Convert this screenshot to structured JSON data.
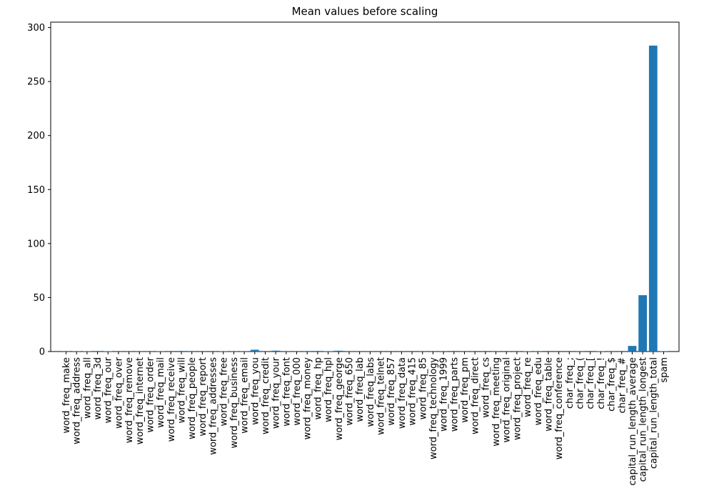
{
  "chart_data": {
    "type": "bar",
    "title": "Mean values before scaling",
    "xlabel": "",
    "ylabel": "",
    "ylim": [
      0,
      305
    ],
    "yticks": [
      0,
      50,
      100,
      150,
      200,
      250,
      300
    ],
    "grid": false,
    "legend": "none",
    "bar_color": "#1f77b4",
    "categories": [
      "word_freq_make",
      "word_freq_address",
      "word_freq_all",
      "word_freq_3d",
      "word_freq_our",
      "word_freq_over",
      "word_freq_remove",
      "word_freq_internet",
      "word_freq_order",
      "word_freq_mail",
      "word_freq_receive",
      "word_freq_will",
      "word_freq_people",
      "word_freq_report",
      "word_freq_addresses",
      "word_freq_free",
      "word_freq_business",
      "word_freq_email",
      "word_freq_you",
      "word_freq_credit",
      "word_freq_your",
      "word_freq_font",
      "word_freq_000",
      "word_freq_money",
      "word_freq_hp",
      "word_freq_hpl",
      "word_freq_george",
      "word_freq_650",
      "word_freq_lab",
      "word_freq_labs",
      "word_freq_telnet",
      "word_freq_857",
      "word_freq_data",
      "word_freq_415",
      "word_freq_85",
      "word_freq_technology",
      "word_freq_1999",
      "word_freq_parts",
      "word_freq_pm",
      "word_freq_direct",
      "word_freq_cs",
      "word_freq_meeting",
      "word_freq_original",
      "word_freq_project",
      "word_freq_re",
      "word_freq_edu",
      "word_freq_table",
      "word_freq_conference",
      "char_freq_;",
      "char_freq_(",
      "char_freq_[",
      "char_freq_!",
      "char_freq_$",
      "char_freq_#",
      "capital_run_length_average",
      "capital_run_length_longest",
      "capital_run_length_total",
      "spam"
    ],
    "values": [
      0.1,
      0.21,
      0.28,
      0.07,
      0.31,
      0.1,
      0.11,
      0.11,
      0.09,
      0.24,
      0.06,
      0.54,
      0.09,
      0.06,
      0.05,
      0.25,
      0.14,
      0.18,
      1.66,
      0.09,
      0.81,
      0.12,
      0.1,
      0.09,
      0.55,
      0.27,
      0.77,
      0.12,
      0.1,
      0.1,
      0.06,
      0.05,
      0.1,
      0.05,
      0.11,
      0.1,
      0.14,
      0.01,
      0.08,
      0.06,
      0.04,
      0.13,
      0.05,
      0.08,
      0.3,
      0.18,
      0.01,
      0.03,
      0.04,
      0.14,
      0.02,
      0.27,
      0.08,
      0.04,
      5.19,
      52.17,
      283.29,
      0.39
    ]
  }
}
